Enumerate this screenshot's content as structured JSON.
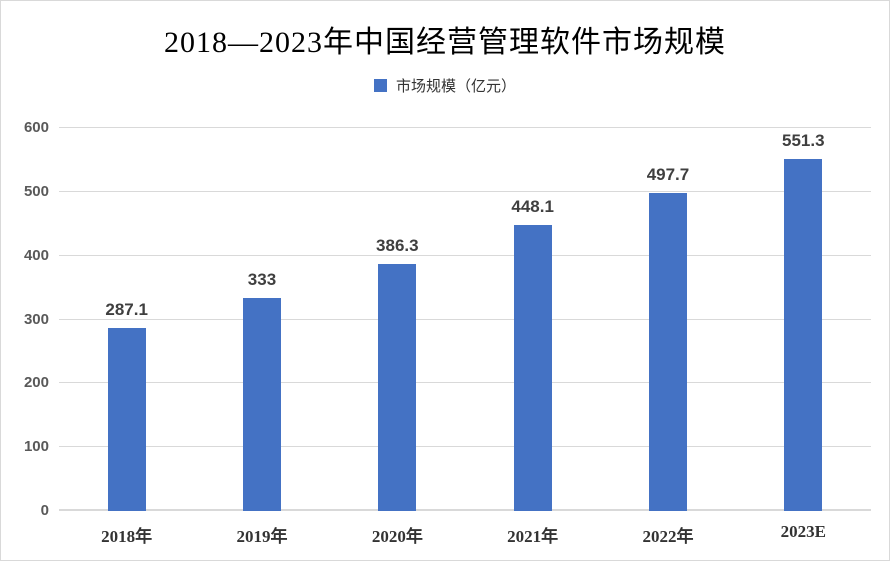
{
  "chart_data": {
    "type": "bar",
    "title": "2018—2023年中国经营管理软件市场规模",
    "categories": [
      "2018年",
      "2019年",
      "2020年",
      "2021年",
      "2022年",
      "2023E"
    ],
    "series": [
      {
        "name": "市场规模（亿元）",
        "values": [
          287.1,
          333,
          386.3,
          448.1,
          497.7,
          551.3
        ]
      }
    ],
    "value_labels": [
      "287.1",
      "333",
      "386.3",
      "448.1",
      "497.7",
      "551.3"
    ],
    "yticks": [
      0,
      100,
      200,
      300,
      400,
      500,
      600
    ],
    "ylim": [
      0,
      600
    ],
    "xlabel": "",
    "ylabel": "",
    "grid": true,
    "legend_position": "top-center",
    "colors": {
      "bar": "#4472C4",
      "gridline": "#d9d9d9",
      "y_tick_label": "#595959",
      "data_label": "#3f3f3f",
      "x_tick_label": "#333333",
      "title": "#000000",
      "background": "#ffffff",
      "border": "#d9d9d9"
    }
  }
}
